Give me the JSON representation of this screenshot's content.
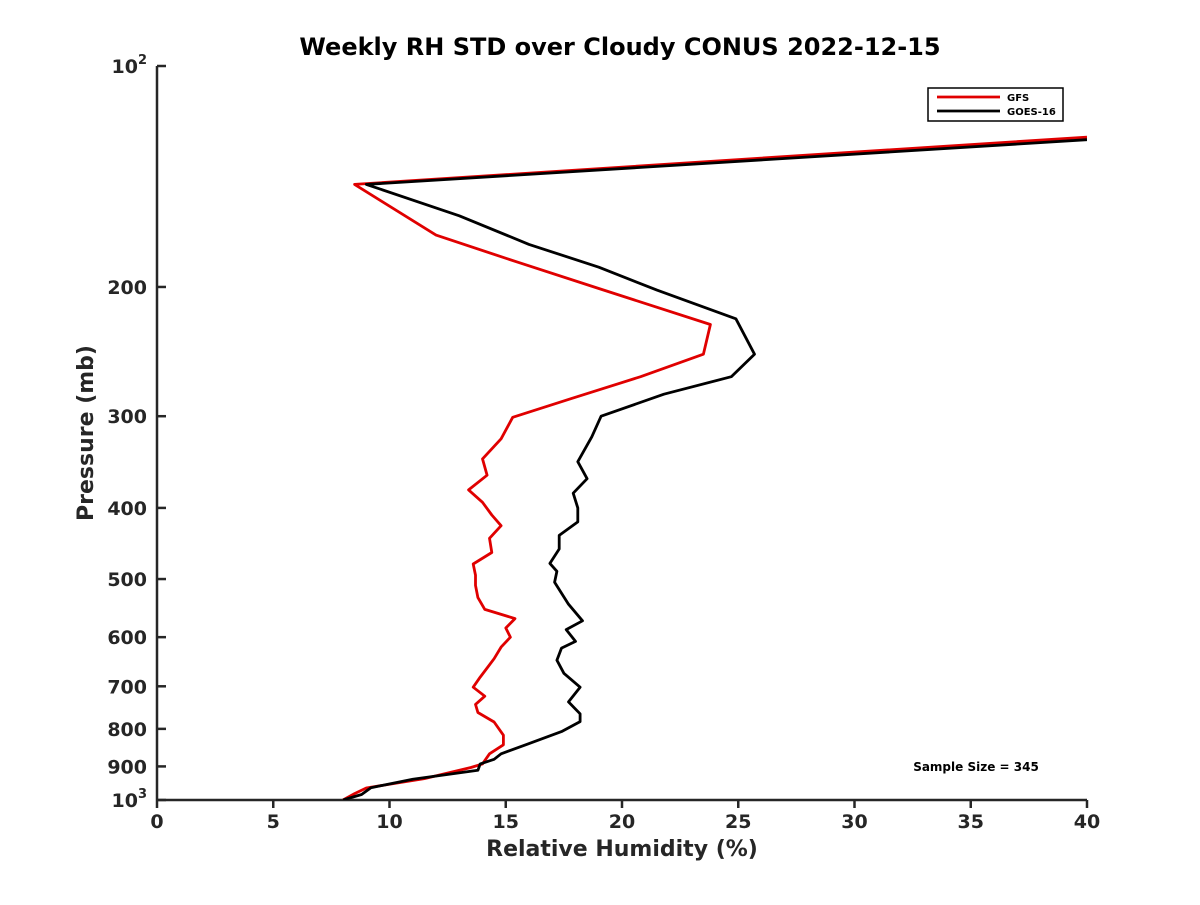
{
  "chart_data": {
    "type": "line",
    "title": "Weekly RH STD over Cloudy CONUS 2022-12-15",
    "xlabel": "Relative Humidity (%)",
    "ylabel": "Pressure (mb)",
    "xlim": [
      0,
      40
    ],
    "ylim": [
      100,
      1000
    ],
    "y_scale": "log",
    "y_reversed": true,
    "grid": false,
    "legend_position": "top-right",
    "x_ticks": [
      0,
      5,
      10,
      15,
      20,
      25,
      30,
      35,
      40
    ],
    "x_tick_labels": [
      "0",
      "5",
      "10",
      "15",
      "20",
      "25",
      "30",
      "35",
      "40"
    ],
    "y_ticks": [
      100,
      200,
      300,
      400,
      500,
      600,
      700,
      800,
      900,
      1000
    ],
    "y_tick_labels": [
      {
        "base": "10",
        "exp": "2"
      },
      {
        "base": "200",
        "exp": ""
      },
      {
        "base": "300",
        "exp": ""
      },
      {
        "base": "400",
        "exp": ""
      },
      {
        "base": "500",
        "exp": ""
      },
      {
        "base": "600",
        "exp": ""
      },
      {
        "base": "700",
        "exp": ""
      },
      {
        "base": "800",
        "exp": ""
      },
      {
        "base": "900",
        "exp": ""
      },
      {
        "base": "10",
        "exp": "3"
      }
    ],
    "annotation": "Sample Size = 345",
    "series": [
      {
        "name": "GFS",
        "color": "#e00000",
        "points": [
          [
            40,
            125
          ],
          [
            8.5,
            145
          ],
          [
            12.0,
            170
          ],
          [
            15.5,
            185
          ],
          [
            19.0,
            201
          ],
          [
            23.8,
            225
          ],
          [
            23.5,
            247
          ],
          [
            20.8,
            265
          ],
          [
            17.8,
            284
          ],
          [
            15.3,
            301
          ],
          [
            14.8,
            322
          ],
          [
            14.0,
            343
          ],
          [
            14.2,
            361
          ],
          [
            13.4,
            378
          ],
          [
            14.0,
            393
          ],
          [
            14.4,
            409
          ],
          [
            14.8,
            423
          ],
          [
            14.3,
            440
          ],
          [
            14.4,
            460
          ],
          [
            13.6,
            477
          ],
          [
            13.7,
            494
          ],
          [
            13.7,
            510
          ],
          [
            13.8,
            530
          ],
          [
            14.1,
            550
          ],
          [
            15.4,
            566
          ],
          [
            15.0,
            583
          ],
          [
            15.2,
            600
          ],
          [
            14.8,
            619
          ],
          [
            14.5,
            642
          ],
          [
            14.2,
            661
          ],
          [
            13.9,
            680
          ],
          [
            13.6,
            702
          ],
          [
            14.1,
            722
          ],
          [
            13.7,
            741
          ],
          [
            13.8,
            760
          ],
          [
            14.5,
            783
          ],
          [
            14.9,
            816
          ],
          [
            14.9,
            841
          ],
          [
            14.3,
            865
          ],
          [
            14.0,
            893
          ],
          [
            13.5,
            903
          ],
          [
            11.5,
            935
          ],
          [
            9.0,
            963
          ],
          [
            8.5,
            980
          ],
          [
            8.0,
            1000
          ]
        ]
      },
      {
        "name": "GOES-16",
        "color": "#000000",
        "points": [
          [
            40,
            126
          ],
          [
            9.0,
            145
          ],
          [
            13.0,
            160
          ],
          [
            16.0,
            175
          ],
          [
            19.0,
            188
          ],
          [
            21.5,
            202
          ],
          [
            24.9,
            221
          ],
          [
            25.7,
            247
          ],
          [
            24.7,
            265
          ],
          [
            21.8,
            280
          ],
          [
            19.1,
            300
          ],
          [
            18.7,
            320
          ],
          [
            18.1,
            346
          ],
          [
            18.5,
            365
          ],
          [
            17.9,
            382
          ],
          [
            18.1,
            400
          ],
          [
            18.1,
            418
          ],
          [
            17.3,
            436
          ],
          [
            17.3,
            455
          ],
          [
            16.9,
            476
          ],
          [
            17.2,
            488
          ],
          [
            17.1,
            505
          ],
          [
            17.7,
            541
          ],
          [
            18.3,
            570
          ],
          [
            17.6,
            586
          ],
          [
            18.0,
            608
          ],
          [
            17.4,
            621
          ],
          [
            17.2,
            645
          ],
          [
            17.5,
            672
          ],
          [
            18.2,
            702
          ],
          [
            17.7,
            735
          ],
          [
            18.2,
            763
          ],
          [
            18.2,
            782
          ],
          [
            17.4,
            807
          ],
          [
            15.9,
            840
          ],
          [
            14.8,
            865
          ],
          [
            14.5,
            880
          ],
          [
            13.9,
            893
          ],
          [
            13.8,
            911
          ],
          [
            11.0,
            937
          ],
          [
            9.2,
            962
          ],
          [
            8.8,
            983
          ],
          [
            8.0,
            1000
          ]
        ]
      }
    ]
  }
}
